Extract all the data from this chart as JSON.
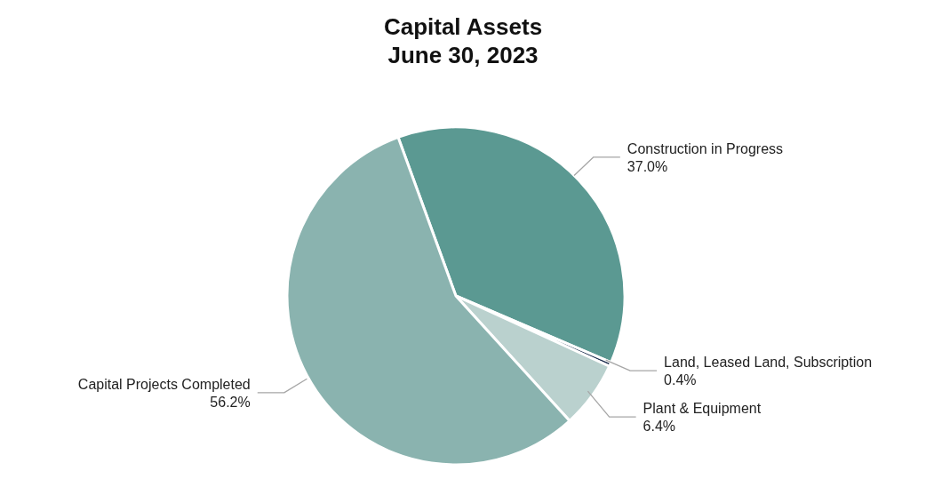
{
  "chart_data": {
    "type": "pie",
    "title": "Capital Assets\nJune 30, 2023",
    "categories": [
      "Construction in Progress",
      "Land, Leased Land, Subscription",
      "Plant & Equipment",
      "Capital Projects Completed"
    ],
    "values": [
      37.0,
      0.4,
      6.4,
      56.2
    ],
    "value_labels": [
      "37.0%",
      "0.4%",
      "6.4%",
      "56.2%"
    ],
    "colors": [
      "#5b9992",
      "#1f3050",
      "#bad1ce",
      "#8ab3af"
    ],
    "legend": false
  }
}
